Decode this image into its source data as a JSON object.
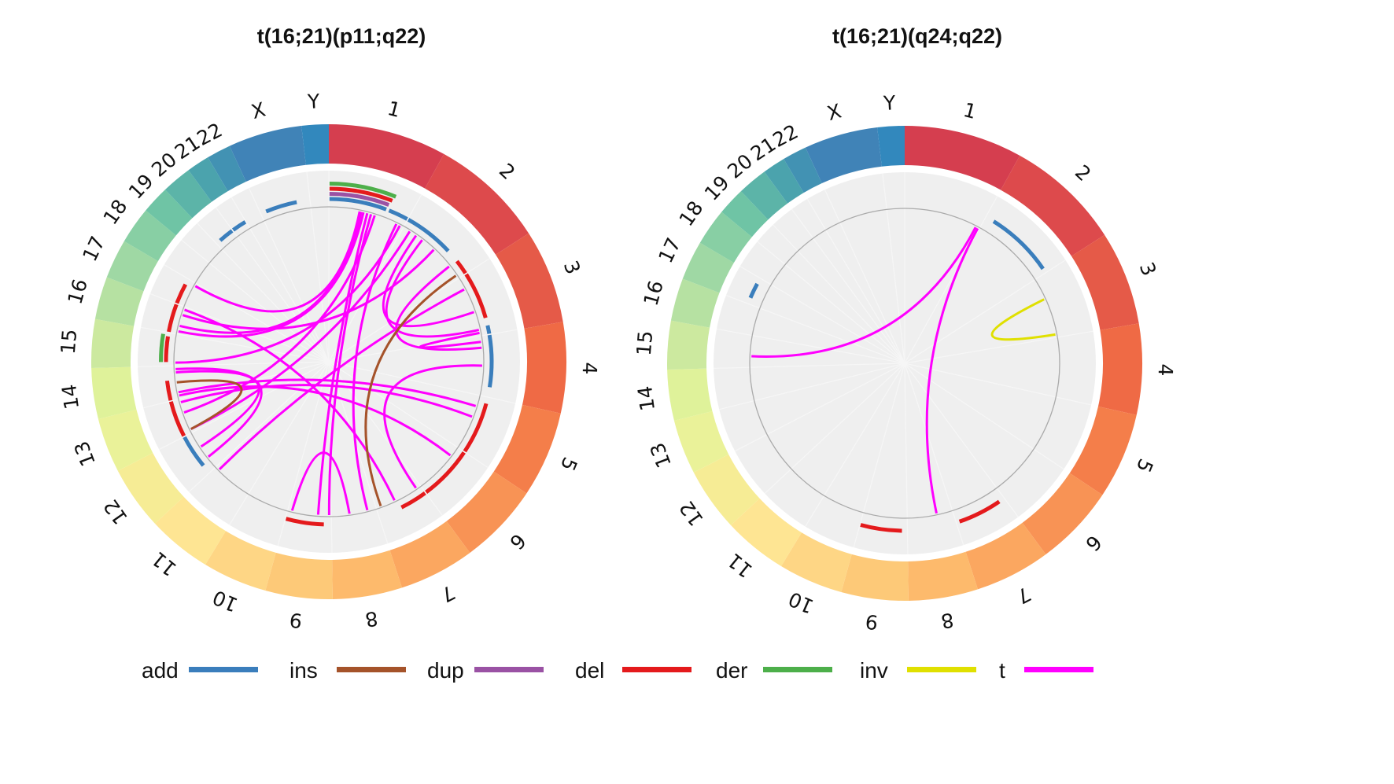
{
  "chart_data": [
    {
      "type": "circos",
      "title": "t(16;21)(p11;q22)",
      "chromosomes": [
        "1",
        "2",
        "3",
        "4",
        "5",
        "6",
        "7",
        "8",
        "9",
        "10",
        "11",
        "12",
        "13",
        "14",
        "15",
        "16",
        "17",
        "18",
        "19",
        "20",
        "21",
        "22",
        "X",
        "Y"
      ],
      "chromosome_sizes_mb": [
        249,
        243,
        198,
        191,
        181,
        171,
        159,
        146,
        141,
        136,
        135,
        134,
        115,
        107,
        102,
        90,
        83,
        78,
        59,
        63,
        48,
        51,
        155,
        57
      ],
      "chromosome_colors": [
        "#d53e4f",
        "#dd4a4c",
        "#e55a48",
        "#ef6a45",
        "#f47e4a",
        "#f89355",
        "#fba760",
        "#fdba6c",
        "#fdc978",
        "#fed685",
        "#fee593",
        "#f6ec95",
        "#eaf299",
        "#dff29a",
        "#cce99f",
        "#b6e1a2",
        "#9fd8a4",
        "#88cfa4",
        "#6fc4a5",
        "#5cb4a8",
        "#4ba3ad",
        "#4292b3",
        "#4083b7",
        "#3288bd"
      ],
      "track_segments": [
        {
          "type": "der",
          "chr": "1",
          "start": 0,
          "end": 0.77,
          "lane": 3
        },
        {
          "type": "del",
          "chr": "1",
          "start": 0,
          "end": 0.75,
          "lane": 2
        },
        {
          "type": "dup",
          "chr": "1",
          "start": 0,
          "end": 0.73,
          "lane": 1
        },
        {
          "type": "add",
          "chr": "1",
          "start": 0,
          "end": 0.72,
          "lane": 0
        },
        {
          "type": "add",
          "chr": "1",
          "start": 0.74,
          "end": 1.0,
          "lane": 0
        },
        {
          "type": "add",
          "chr": "2",
          "start": 0,
          "end": 0.65,
          "lane": 0
        },
        {
          "type": "del",
          "chr": "2",
          "start": 0.8,
          "end": 1.0,
          "lane": 0
        },
        {
          "type": "del",
          "chr": "3",
          "start": 0,
          "end": 0.75,
          "lane": 0
        },
        {
          "type": "add",
          "chr": "3",
          "start": 0.85,
          "end": 1.0,
          "lane": 0
        },
        {
          "type": "add",
          "chr": "4",
          "start": 0,
          "end": 0.85,
          "lane": 0
        },
        {
          "type": "del",
          "chr": "5",
          "start": 0.1,
          "end": 1.0,
          "lane": 0
        },
        {
          "type": "del",
          "chr": "6",
          "start": 0,
          "end": 1.0,
          "lane": 0
        },
        {
          "type": "del",
          "chr": "7",
          "start": 0,
          "end": 0.55,
          "lane": 0
        },
        {
          "type": "del",
          "chr": "9",
          "start": 0.15,
          "end": 1.0,
          "lane": 0
        },
        {
          "type": "add",
          "chr": "12",
          "start": 0.2,
          "end": 1.0,
          "lane": 0
        },
        {
          "type": "del",
          "chr": "13",
          "start": 0,
          "end": 1.0,
          "lane": 0
        },
        {
          "type": "del",
          "chr": "14",
          "start": 0,
          "end": 0.6,
          "lane": 0
        },
        {
          "type": "del",
          "chr": "15",
          "start": 0.1,
          "end": 0.9,
          "lane": 0
        },
        {
          "type": "der",
          "chr": "15",
          "start": 0.1,
          "end": 0.95,
          "lane": 1
        },
        {
          "type": "del",
          "chr": "16",
          "start": 0,
          "end": 1.0,
          "lane": 0
        },
        {
          "type": "del",
          "chr": "17",
          "start": 0,
          "end": 0.8,
          "lane": 0
        },
        {
          "type": "add",
          "chr": "20",
          "start": 0.2,
          "end": 1.0,
          "lane": 0
        },
        {
          "type": "add",
          "chr": "21",
          "start": 0,
          "end": 1.0,
          "lane": 0
        },
        {
          "type": "add",
          "chr": "X",
          "start": 0.1,
          "end": 0.75,
          "lane": 0
        }
      ],
      "links": [
        {
          "type": "t",
          "from": {
            "chr": "1",
            "pos": 0.4
          },
          "to": {
            "chr": "17",
            "pos": 0.9
          }
        },
        {
          "type": "t",
          "from": {
            "chr": "1",
            "pos": 0.42
          },
          "to": {
            "chr": "16",
            "pos": 0.3
          }
        },
        {
          "type": "t",
          "from": {
            "chr": "1",
            "pos": 0.45
          },
          "to": {
            "chr": "16",
            "pos": 0.1
          }
        },
        {
          "type": "t",
          "from": {
            "chr": "1",
            "pos": 0.5
          },
          "to": {
            "chr": "9",
            "pos": 0.3
          }
        },
        {
          "type": "t",
          "from": {
            "chr": "1",
            "pos": 0.55
          },
          "to": {
            "chr": "9",
            "pos": 0.05
          }
        },
        {
          "type": "t",
          "from": {
            "chr": "1",
            "pos": 0.6
          },
          "to": {
            "chr": "13",
            "pos": 0.6
          }
        },
        {
          "type": "t",
          "from": {
            "chr": "1",
            "pos": 0.9
          },
          "to": {
            "chr": "8",
            "pos": 0.2
          }
        },
        {
          "type": "t",
          "from": {
            "chr": "1",
            "pos": 0.95
          },
          "to": {
            "chr": "15",
            "pos": 0.1
          }
        },
        {
          "type": "t",
          "from": {
            "chr": "2",
            "pos": 0.1
          },
          "to": {
            "chr": "13",
            "pos": 0.1
          }
        },
        {
          "type": "t",
          "from": {
            "chr": "2",
            "pos": 0.2
          },
          "to": {
            "chr": "3",
            "pos": 0.6
          }
        },
        {
          "type": "t",
          "from": {
            "chr": "2",
            "pos": 0.3
          },
          "to": {
            "chr": "3",
            "pos": 0.9
          }
        },
        {
          "type": "t",
          "from": {
            "chr": "2",
            "pos": 0.5
          },
          "to": {
            "chr": "16",
            "pos": 0.7
          }
        },
        {
          "type": "t",
          "from": {
            "chr": "2",
            "pos": 0.8
          },
          "to": {
            "chr": "4",
            "pos": 0.2
          }
        },
        {
          "type": "t",
          "from": {
            "chr": "3",
            "pos": 0.2
          },
          "to": {
            "chr": "11",
            "pos": 0.9
          }
        },
        {
          "type": "t",
          "from": {
            "chr": "3",
            "pos": 0.95
          },
          "to": {
            "chr": "4",
            "pos": 0.1
          }
        },
        {
          "type": "t",
          "from": {
            "chr": "4",
            "pos": 0.5
          },
          "to": {
            "chr": "7",
            "pos": 0.1
          }
        },
        {
          "type": "t",
          "from": {
            "chr": "5",
            "pos": 0.4
          },
          "to": {
            "chr": "13",
            "pos": 0.9
          }
        },
        {
          "type": "t",
          "from": {
            "chr": "5",
            "pos": 0.2
          },
          "to": {
            "chr": "14",
            "pos": 0.2
          }
        },
        {
          "type": "t",
          "from": {
            "chr": "6",
            "pos": 0.2
          },
          "to": {
            "chr": "14",
            "pos": 0.1
          }
        },
        {
          "type": "t",
          "from": {
            "chr": "8",
            "pos": 0.6
          },
          "to": {
            "chr": "9",
            "pos": 0.9
          }
        },
        {
          "type": "t",
          "from": {
            "chr": "7",
            "pos": 0.6
          },
          "to": {
            "chr": "16",
            "pos": 0.9
          }
        },
        {
          "type": "t",
          "from": {
            "chr": "12",
            "pos": 0.6
          },
          "to": {
            "chr": "14",
            "pos": 0.8
          }
        },
        {
          "type": "t",
          "from": {
            "chr": "12",
            "pos": 0.3
          },
          "to": {
            "chr": "14",
            "pos": 0.9
          }
        },
        {
          "type": "ins",
          "from": {
            "chr": "2",
            "pos": 0.95
          },
          "to": {
            "chr": "7",
            "pos": 0.9
          }
        },
        {
          "type": "ins",
          "from": {
            "chr": "14",
            "pos": 0.5
          },
          "to": {
            "chr": "13",
            "pos": 0.1
          }
        }
      ]
    },
    {
      "type": "circos",
      "title": "t(16;21)(q24;q22)",
      "chromosomes": [
        "1",
        "2",
        "3",
        "4",
        "5",
        "6",
        "7",
        "8",
        "9",
        "10",
        "11",
        "12",
        "13",
        "14",
        "15",
        "16",
        "17",
        "18",
        "19",
        "20",
        "21",
        "22",
        "X",
        "Y"
      ],
      "chromosome_sizes_mb": [
        249,
        243,
        198,
        191,
        181,
        171,
        159,
        146,
        141,
        136,
        135,
        134,
        115,
        107,
        102,
        90,
        83,
        78,
        59,
        63,
        48,
        51,
        155,
        57
      ],
      "chromosome_colors": [
        "#d53e4f",
        "#dd4a4c",
        "#e55a48",
        "#ef6a45",
        "#f47e4a",
        "#f89355",
        "#fba760",
        "#fdba6c",
        "#fdc978",
        "#fed685",
        "#fee593",
        "#f6ec95",
        "#eaf299",
        "#dff29a",
        "#cce99f",
        "#b6e1a2",
        "#9fd8a4",
        "#88cfa4",
        "#6fc4a5",
        "#5cb4a8",
        "#4ba3ad",
        "#4292b3",
        "#4083b7",
        "#3288bd"
      ],
      "track_segments": [
        {
          "type": "add",
          "chr": "2",
          "start": 0.1,
          "end": 0.95,
          "lane": 0
        },
        {
          "type": "add",
          "chr": "17",
          "start": 0.2,
          "end": 0.8,
          "lane": 0
        },
        {
          "type": "del",
          "chr": "7",
          "start": 0.1,
          "end": 0.95,
          "lane": 0
        },
        {
          "type": "del",
          "chr": "9",
          "start": 0.1,
          "end": 1.0,
          "lane": 0
        }
      ],
      "links": [
        {
          "type": "t",
          "from": {
            "chr": "1",
            "pos": 0.95
          },
          "to": {
            "chr": "15",
            "pos": 0.35
          }
        },
        {
          "type": "t",
          "from": {
            "chr": "1",
            "pos": 0.98
          },
          "to": {
            "chr": "8",
            "pos": 0.35
          }
        },
        {
          "type": "inv",
          "from": {
            "chr": "3",
            "pos": 0.35
          },
          "to": {
            "chr": "3",
            "pos": 0.95
          }
        }
      ]
    }
  ],
  "legend": [
    {
      "label": "add",
      "color": "#3a7ebc"
    },
    {
      "label": "ins",
      "color": "#a5532a"
    },
    {
      "label": "dup",
      "color": "#9a52a4"
    },
    {
      "label": "del",
      "color": "#e41a1c"
    },
    {
      "label": "der",
      "color": "#4daf4a"
    },
    {
      "label": "inv",
      "color": "#e0e000"
    },
    {
      "label": "t",
      "color": "#ff00ff"
    }
  ]
}
